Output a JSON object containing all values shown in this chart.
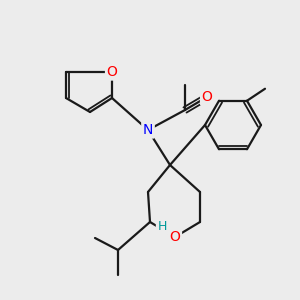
{
  "bg_color": "#ececec",
  "atom_colors": {
    "O": "#ff0000",
    "N": "#0000ff",
    "H": "#009999",
    "C": "#1a1a1a"
  },
  "bond_color": "#1a1a1a",
  "bond_lw": 1.6,
  "fig_size": [
    3.0,
    3.0
  ],
  "dpi": 100
}
